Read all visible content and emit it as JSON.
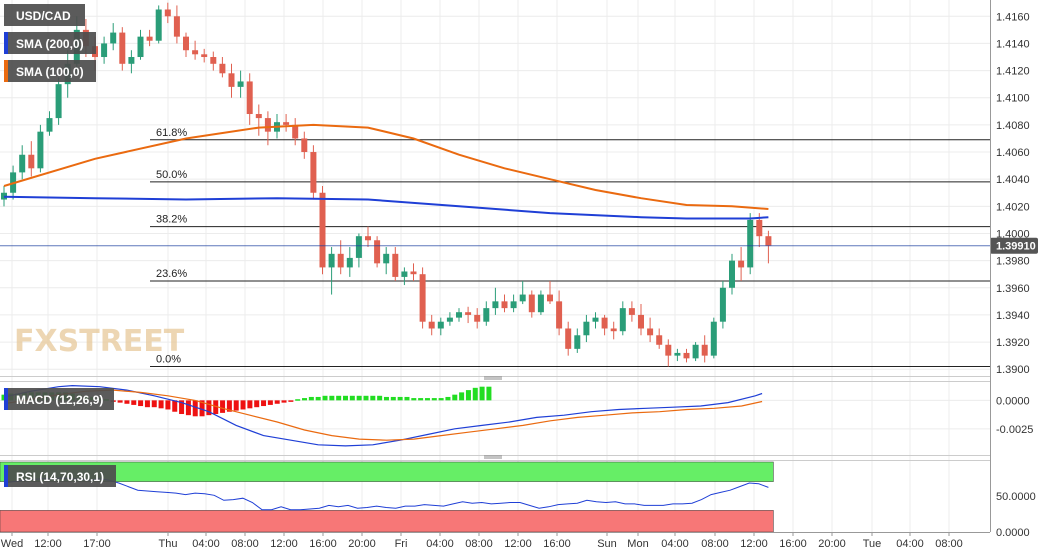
{
  "legend": {
    "symbol": "USD/CAD",
    "sma200": "SMA (200,0)",
    "sma100": "SMA (100,0)",
    "macd": "MACD (12,26,9)",
    "rsi": "RSI (14,70,30,1)"
  },
  "watermark": "FXSTREET",
  "last_price_label": "1.39910",
  "colors": {
    "bull": "#2a9d78",
    "bear": "#e06050",
    "sma200": "#1f3fd6",
    "sma100": "#ea6a10",
    "macd_pos": "#22dd22",
    "macd_neg": "#ee1111",
    "rsi_over": "#66ee66",
    "rsi_under": "#f77777",
    "badge": "#555555"
  },
  "chart_data": [
    {
      "type": "candlestick",
      "title": "USD/CAD",
      "ylim": [
        1.3895,
        1.4172
      ],
      "yticks": [
        "1.4160",
        "1.4140",
        "1.4120",
        "1.4100",
        "1.4080",
        "1.4060",
        "1.4040",
        "1.4020",
        "1.4000",
        "1.3980",
        "1.3960",
        "1.3940",
        "1.3920",
        "1.3900"
      ],
      "x_labels": [
        "Wed",
        "12:00",
        "17:00",
        "Thu",
        "04:00",
        "08:00",
        "12:00",
        "16:00",
        "20:00",
        "Fri",
        "04:00",
        "08:00",
        "12:00",
        "16:00",
        "Sun",
        "Mon",
        "04:00",
        "08:00",
        "12:00",
        "16:00",
        "20:00",
        "Tue",
        "04:00",
        "08:00"
      ],
      "fib_levels": [
        {
          "label": "61.8%",
          "value": 1.4069
        },
        {
          "label": "50.0%",
          "value": 1.4038
        },
        {
          "label": "38.2%",
          "value": 1.4005
        },
        {
          "label": "23.6%",
          "value": 1.3965
        },
        {
          "label": "0.0%",
          "value": 1.3902
        }
      ],
      "last_price": 1.3991,
      "candles": [
        [
          1.4025,
          1.4035,
          1.402,
          1.403
        ],
        [
          1.403,
          1.405,
          1.4025,
          1.4045
        ],
        [
          1.4045,
          1.4065,
          1.404,
          1.4058
        ],
        [
          1.4058,
          1.4068,
          1.4042,
          1.4048
        ],
        [
          1.4048,
          1.408,
          1.4045,
          1.4075
        ],
        [
          1.4075,
          1.409,
          1.4072,
          1.4085
        ],
        [
          1.4085,
          1.4115,
          1.408,
          1.411
        ],
        [
          1.411,
          1.4135,
          1.41,
          1.4125
        ],
        [
          1.4125,
          1.416,
          1.4118,
          1.415
        ],
        [
          1.415,
          1.4158,
          1.413,
          1.4138
        ],
        [
          1.4138,
          1.4145,
          1.412,
          1.413
        ],
        [
          1.413,
          1.4145,
          1.4125,
          1.414
        ],
        [
          1.414,
          1.4155,
          1.4135,
          1.4148
        ],
        [
          1.4148,
          1.4152,
          1.412,
          1.4125
        ],
        [
          1.4125,
          1.4135,
          1.4118,
          1.413
        ],
        [
          1.413,
          1.415,
          1.4128,
          1.4145
        ],
        [
          1.4145,
          1.415,
          1.4138,
          1.4142
        ],
        [
          1.4142,
          1.4168,
          1.414,
          1.4165
        ],
        [
          1.4165,
          1.417,
          1.4155,
          1.416
        ],
        [
          1.416,
          1.4168,
          1.414,
          1.4145
        ],
        [
          1.4145,
          1.4148,
          1.413,
          1.4135
        ],
        [
          1.4135,
          1.4142,
          1.4128,
          1.4132
        ],
        [
          1.4132,
          1.4136,
          1.4126,
          1.413
        ],
        [
          1.413,
          1.4134,
          1.412,
          1.4125
        ],
        [
          1.4125,
          1.413,
          1.4115,
          1.4118
        ],
        [
          1.4118,
          1.4125,
          1.41,
          1.4108
        ],
        [
          1.4108,
          1.412,
          1.41,
          1.4112
        ],
        [
          1.4112,
          1.4118,
          1.408,
          1.4088
        ],
        [
          1.4088,
          1.4095,
          1.4072,
          1.4085
        ],
        [
          1.4085,
          1.409,
          1.4065,
          1.4075
        ],
        [
          1.4075,
          1.4088,
          1.407,
          1.4082
        ],
        [
          1.4082,
          1.4088,
          1.4075,
          1.408
        ],
        [
          1.408,
          1.4085,
          1.4065,
          1.407
        ],
        [
          1.407,
          1.4075,
          1.4055,
          1.406
        ],
        [
          1.406,
          1.4065,
          1.4025,
          1.403
        ],
        [
          1.403,
          1.4035,
          1.397,
          1.3975
        ],
        [
          1.3975,
          1.399,
          1.3955,
          1.3985
        ],
        [
          1.3985,
          1.3995,
          1.397,
          1.3975
        ],
        [
          1.3975,
          1.399,
          1.3968,
          1.3982
        ],
        [
          1.3982,
          1.4,
          1.3975,
          1.3998
        ],
        [
          1.3998,
          1.4005,
          1.399,
          1.3995
        ],
        [
          1.3995,
          1.3998,
          1.3975,
          1.3978
        ],
        [
          1.3978,
          1.399,
          1.397,
          1.3985
        ],
        [
          1.3985,
          1.399,
          1.3965,
          1.3968
        ],
        [
          1.3968,
          1.3975,
          1.3962,
          1.3972
        ],
        [
          1.3972,
          1.3978,
          1.3965,
          1.397
        ],
        [
          1.397,
          1.3975,
          1.393,
          1.3935
        ],
        [
          1.3935,
          1.394,
          1.3925,
          1.393
        ],
        [
          1.393,
          1.3938,
          1.3925,
          1.3935
        ],
        [
          1.3935,
          1.3942,
          1.3932,
          1.3938
        ],
        [
          1.3938,
          1.3945,
          1.3935,
          1.3942
        ],
        [
          1.3942,
          1.3946,
          1.3934,
          1.394
        ],
        [
          1.394,
          1.3945,
          1.393,
          1.3935
        ],
        [
          1.3935,
          1.395,
          1.3932,
          1.3945
        ],
        [
          1.3945,
          1.396,
          1.394,
          1.395
        ],
        [
          1.395,
          1.3955,
          1.3942,
          1.3945
        ],
        [
          1.3945,
          1.3955,
          1.3942,
          1.395
        ],
        [
          1.395,
          1.3965,
          1.3948,
          1.3955
        ],
        [
          1.3955,
          1.3958,
          1.3938,
          1.3942
        ],
        [
          1.3942,
          1.3958,
          1.394,
          1.3955
        ],
        [
          1.3955,
          1.3965,
          1.3948,
          1.395
        ],
        [
          1.395,
          1.3958,
          1.3925,
          1.393
        ],
        [
          1.393,
          1.3935,
          1.391,
          1.3915
        ],
        [
          1.3915,
          1.393,
          1.3912,
          1.3925
        ],
        [
          1.3925,
          1.394,
          1.392,
          1.3935
        ],
        [
          1.3935,
          1.3942,
          1.393,
          1.3938
        ],
        [
          1.3938,
          1.394,
          1.3925,
          1.393
        ],
        [
          1.393,
          1.3935,
          1.3922,
          1.3928
        ],
        [
          1.3928,
          1.395,
          1.3925,
          1.3945
        ],
        [
          1.3945,
          1.395,
          1.3935,
          1.394
        ],
        [
          1.394,
          1.3948,
          1.3925,
          1.393
        ],
        [
          1.393,
          1.3938,
          1.392,
          1.3925
        ],
        [
          1.3925,
          1.393,
          1.3915,
          1.3918
        ],
        [
          1.3918,
          1.3922,
          1.3902,
          1.391
        ],
        [
          1.391,
          1.3915,
          1.3906,
          1.3912
        ],
        [
          1.3912,
          1.3915,
          1.3905,
          1.3908
        ],
        [
          1.3908,
          1.392,
          1.3906,
          1.3918
        ],
        [
          1.3918,
          1.3925,
          1.3905,
          1.391
        ],
        [
          1.391,
          1.3938,
          1.3908,
          1.3935
        ],
        [
          1.3935,
          1.3965,
          1.393,
          1.396
        ],
        [
          1.396,
          1.3985,
          1.3955,
          1.398
        ],
        [
          1.398,
          1.399,
          1.3965,
          1.3975
        ],
        [
          1.3975,
          1.4015,
          1.397,
          1.401
        ],
        [
          1.401,
          1.4015,
          1.399,
          1.3998
        ],
        [
          1.3998,
          1.4002,
          1.3978,
          1.3991
        ]
      ],
      "sma200": [
        [
          0,
          1.4027
        ],
        [
          10,
          1.4026
        ],
        [
          20,
          1.4025
        ],
        [
          30,
          1.4026
        ],
        [
          40,
          1.4025
        ],
        [
          50,
          1.402
        ],
        [
          60,
          1.4015
        ],
        [
          70,
          1.4012
        ],
        [
          75,
          1.4011
        ],
        [
          82,
          1.4011
        ],
        [
          84,
          1.4012
        ]
      ],
      "sma100": [
        [
          0,
          1.4035
        ],
        [
          10,
          1.4055
        ],
        [
          20,
          1.407
        ],
        [
          28,
          1.4078
        ],
        [
          34,
          1.408
        ],
        [
          40,
          1.4078
        ],
        [
          45,
          1.407
        ],
        [
          50,
          1.4058
        ],
        [
          55,
          1.4048
        ],
        [
          60,
          1.404
        ],
        [
          65,
          1.4032
        ],
        [
          70,
          1.4026
        ],
        [
          75,
          1.4021
        ],
        [
          80,
          1.402
        ],
        [
          84,
          1.4018
        ]
      ]
    },
    {
      "type": "bar",
      "title": "MACD (12,26,9)",
      "ylim": [
        -0.0048,
        0.0017
      ],
      "yticks": [
        "0.0000",
        "-0.0025"
      ],
      "histogram": [
        0.0005,
        0.0006,
        0.0006,
        0.0007,
        0.0007,
        0.0007,
        0.0007,
        0.0007,
        0.0007,
        0.0007,
        0.0006,
        0.0005,
        0.0004,
        0.0003,
        0.0002,
        0.0001,
        -0.0001,
        -0.0002,
        -0.0003,
        -0.0004,
        -0.0005,
        -0.0006,
        -0.0006,
        -0.0007,
        -0.0008,
        -0.001,
        -0.0012,
        -0.0013,
        -0.0014,
        -0.0014,
        -0.0013,
        -0.0012,
        -0.0011,
        -0.001,
        -0.0009,
        -0.0008,
        -0.0007,
        -0.0006,
        -0.0005,
        -0.0004,
        -0.0003,
        -0.0002,
        -0.0001,
        0.0001,
        0.0002,
        0.0003,
        0.0003,
        0.0004,
        0.0004,
        0.0004,
        0.0004,
        0.0004,
        0.0004,
        0.0004,
        0.0004,
        0.0004,
        0.0003,
        0.0003,
        0.0003,
        0.0003,
        0.0002,
        0.0002,
        0.0002,
        0.0002,
        0.0002,
        0.0003,
        0.0005,
        0.0007,
        0.0009,
        0.0011,
        0.0012,
        0.0012
      ],
      "macd_line": [
        [
          0,
          0.0003
        ],
        [
          4,
          0.0008
        ],
        [
          8,
          0.0012
        ],
        [
          10,
          0.0013
        ],
        [
          14,
          0.0012
        ],
        [
          18,
          0.0009
        ],
        [
          22,
          0.0004
        ],
        [
          26,
          -0.0002
        ],
        [
          30,
          -0.001
        ],
        [
          34,
          -0.0022
        ],
        [
          38,
          -0.0031
        ],
        [
          42,
          -0.0035
        ],
        [
          46,
          -0.0039
        ],
        [
          50,
          -0.004
        ],
        [
          54,
          -0.0039
        ],
        [
          58,
          -0.0035
        ],
        [
          62,
          -0.003
        ],
        [
          66,
          -0.0025
        ],
        [
          70,
          -0.0022
        ],
        [
          74,
          -0.0019
        ],
        [
          78,
          -0.0015
        ],
        [
          82,
          -0.0013
        ],
        [
          86,
          -0.001
        ],
        [
          90,
          -0.0008
        ],
        [
          94,
          -0.0007
        ],
        [
          98,
          -0.0006
        ],
        [
          102,
          -0.0005
        ],
        [
          106,
          -0.0002
        ],
        [
          110,
          0.0004
        ],
        [
          111,
          0.0006
        ]
      ],
      "signal_line": [
        [
          0,
          -0.0003
        ],
        [
          4,
          0.0001
        ],
        [
          8,
          0.0005
        ],
        [
          12,
          0.0008
        ],
        [
          16,
          0.0009
        ],
        [
          20,
          0.0007
        ],
        [
          24,
          0.0004
        ],
        [
          28,
          0.0
        ],
        [
          32,
          -0.0007
        ],
        [
          36,
          -0.0013
        ],
        [
          40,
          -0.0019
        ],
        [
          44,
          -0.0026
        ],
        [
          48,
          -0.0031
        ],
        [
          52,
          -0.0034
        ],
        [
          56,
          -0.0035
        ],
        [
          60,
          -0.0034
        ],
        [
          64,
          -0.0031
        ],
        [
          68,
          -0.0028
        ],
        [
          72,
          -0.0025
        ],
        [
          76,
          -0.0022
        ],
        [
          80,
          -0.0018
        ],
        [
          84,
          -0.0015
        ],
        [
          88,
          -0.0013
        ],
        [
          92,
          -0.0011
        ],
        [
          96,
          -0.001
        ],
        [
          100,
          -0.0008
        ],
        [
          104,
          -0.0007
        ],
        [
          108,
          -0.0005
        ],
        [
          111,
          -0.0001
        ]
      ]
    },
    {
      "type": "line",
      "title": "RSI (14,70,30,1)",
      "ylim": [
        0,
        100
      ],
      "yticks": [
        "50.0000",
        "0.0000"
      ],
      "overbought": 70,
      "oversold": 30,
      "values": [
        68,
        70,
        72,
        73,
        74,
        74,
        75,
        74,
        73,
        72,
        74,
        72,
        68,
        63,
        58,
        57,
        56,
        55,
        54,
        52,
        54,
        53,
        51,
        44,
        45,
        47,
        41,
        31,
        31,
        35,
        31,
        31,
        32,
        33,
        37,
        35,
        37,
        33,
        34,
        36,
        34,
        33,
        36,
        36,
        38,
        37,
        36,
        39,
        42,
        40,
        41,
        39,
        40,
        41,
        41,
        37,
        33,
        35,
        38,
        39,
        40,
        44,
        42,
        41,
        42,
        39,
        39,
        37,
        37,
        37,
        39,
        39,
        40,
        45,
        52,
        55,
        58,
        63,
        68,
        67,
        62
      ]
    }
  ]
}
